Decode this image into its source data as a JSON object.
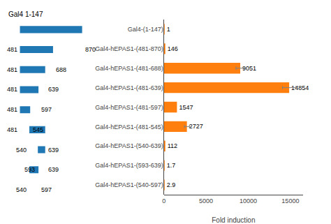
{
  "chart_data": [
    {
      "type": "bar",
      "orientation": "horizontal",
      "categories": [
        "Gal4-(1-147)",
        "Gal4-hEPAS1-(481-870)",
        "Gal4-hEPAS1-(481-688)",
        "Gal4-hEPAS1-(481-639)",
        "Gal4-hEPAS1-(481-597)",
        "Gal4-hEPAS1-(481-545)",
        "Gal4-hEPAS1-(540-639)",
        "Gal4-hEPAS1-(593-639)",
        "Gal4-hEPAS1-(540-597)"
      ],
      "values": [
        1,
        146,
        9051,
        14854,
        1547,
        2727,
        112,
        1.7,
        2.9
      ],
      "errors": [
        0,
        0,
        500,
        800,
        0,
        300,
        0,
        0,
        0
      ],
      "xlabel": "Fold induction",
      "xlim": [
        0,
        16500
      ],
      "xticks": [
        0,
        5000,
        10000,
        15000
      ],
      "grid": false,
      "data_labels": true
    },
    {
      "type": "range",
      "orientation": "horizontal",
      "title": "Gal4 1-147",
      "categories": [
        "Gal4-(1-147)",
        "Gal4-hEPAS1-(481-870)",
        "Gal4-hEPAS1-(481-688)",
        "Gal4-hEPAS1-(481-639)",
        "Gal4-hEPAS1-(481-597)",
        "Gal4-hEPAS1-(481-545)",
        "Gal4-hEPAS1-(540-639)",
        "Gal4-hEPAS1-(593-639)",
        "Gal4-hEPAS1-(540-597)"
      ],
      "starts": [
        null,
        481,
        481,
        481,
        481,
        481,
        540,
        593,
        540
      ],
      "ends": [
        null,
        870,
        688,
        639,
        597,
        545,
        639,
        639,
        597
      ],
      "xlim": [
        400,
        900
      ],
      "tick_labels": false,
      "grid": false,
      "data_labels": true
    }
  ]
}
